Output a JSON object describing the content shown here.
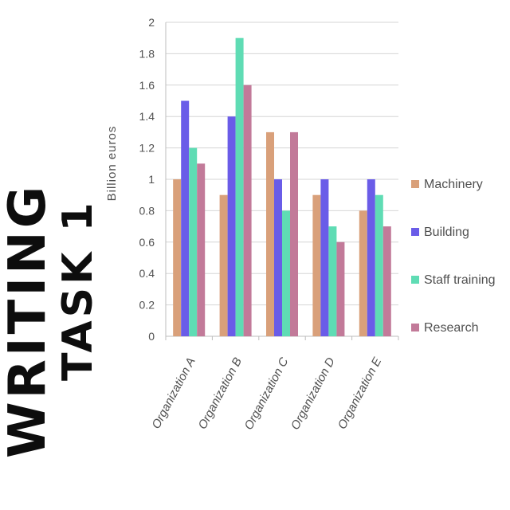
{
  "side_title": {
    "line1": "WRITING",
    "line2": "TASK 1"
  },
  "colors": {
    "Machinery": "#d9a07a",
    "Building": "#6a5ce8",
    "Staff training": "#5fdcb4",
    "Research": "#c27a99",
    "grid": "#d6d6d6"
  },
  "chart_data": {
    "type": "bar",
    "title": "",
    "xlabel": "",
    "ylabel": "Billion euros",
    "ylim": [
      0,
      2
    ],
    "yticks": [
      "0",
      "0.2",
      "0.4",
      "0.6",
      "0.8",
      "1",
      "1.2",
      "1.4",
      "1.6",
      "1.8",
      "2"
    ],
    "categories": [
      "Organization A",
      "Organization B",
      "Organization C",
      "Organization D",
      "Organization E"
    ],
    "series": [
      {
        "name": "Machinery",
        "values": [
          1.0,
          0.9,
          1.3,
          0.9,
          0.8
        ]
      },
      {
        "name": "Building",
        "values": [
          1.5,
          1.4,
          1.0,
          1.0,
          1.0
        ]
      },
      {
        "name": "Staff training",
        "values": [
          1.2,
          1.9,
          0.8,
          0.7,
          0.9
        ]
      },
      {
        "name": "Research",
        "values": [
          1.1,
          1.6,
          1.3,
          0.6,
          0.7
        ]
      }
    ],
    "grid": true,
    "legend": "right"
  }
}
